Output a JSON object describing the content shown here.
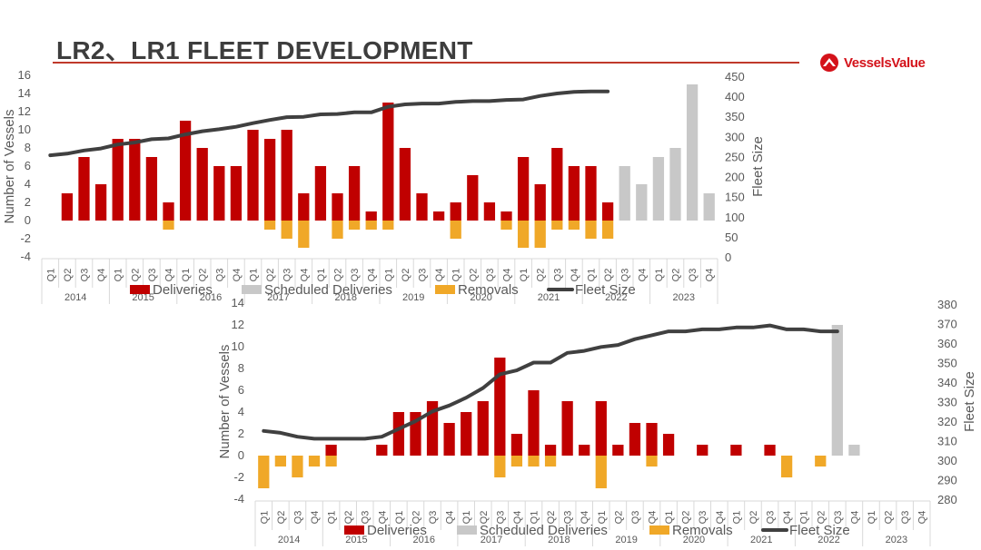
{
  "page": {
    "title": "LR2、LR1 FLEET DEVELOPMENT",
    "brand": "VesselsValue",
    "brand_color": "#d4121a",
    "accent_line_color": "#c0392b"
  },
  "colors": {
    "deliveries": "#c00000",
    "scheduled": "#c8c8c8",
    "removals": "#f0a828",
    "fleet": "#404040",
    "axis_text": "#595959"
  },
  "chart_data": [
    {
      "type": "bar",
      "quarters": [
        "Q1",
        "Q2",
        "Q3",
        "Q4"
      ],
      "years": [
        "2014",
        "2015",
        "2016",
        "2017",
        "2018",
        "2019",
        "2020",
        "2021",
        "2022",
        "2023"
      ],
      "ylabel": "Number of Vessels",
      "y2label": "Fleet Size",
      "ylim": [
        -4,
        16
      ],
      "yticks": [
        -4,
        -2,
        0,
        2,
        4,
        6,
        8,
        10,
        12,
        14,
        16
      ],
      "y2lim": [
        0,
        450
      ],
      "y2ticks": [
        0,
        50,
        100,
        150,
        200,
        250,
        300,
        350,
        400,
        450
      ],
      "legend": [
        "Deliveries",
        "Scheduled Deliveries",
        "Removals",
        "Fleet Size"
      ],
      "legend_position": "bottom",
      "series": {
        "deliveries": [
          0,
          3,
          7,
          4,
          9,
          9,
          7,
          2,
          11,
          8,
          6,
          6,
          10,
          9,
          10,
          3,
          6,
          3,
          6,
          1,
          13,
          8,
          3,
          1,
          2,
          5,
          2,
          1,
          7,
          4,
          8,
          6,
          6,
          2,
          0,
          0,
          0,
          0,
          0,
          0
        ],
        "scheduled": [
          0,
          0,
          0,
          0,
          0,
          0,
          0,
          0,
          0,
          0,
          0,
          0,
          0,
          0,
          0,
          0,
          0,
          0,
          0,
          0,
          0,
          0,
          0,
          0,
          0,
          0,
          0,
          0,
          0,
          0,
          0,
          0,
          0,
          0,
          6,
          4,
          7,
          8,
          15,
          3
        ],
        "removals": [
          0,
          0,
          0,
          0,
          0,
          0,
          0,
          -1,
          0,
          0,
          0,
          0,
          0,
          -1,
          -2,
          -3,
          0,
          -2,
          -1,
          -1,
          -1,
          0,
          0,
          0,
          -2,
          0,
          0,
          -1,
          -3,
          -3,
          -1,
          -1,
          -2,
          -2,
          0,
          0,
          0,
          0,
          0,
          0
        ],
        "fleet_size": [
          253,
          257,
          265,
          270,
          280,
          285,
          293,
          295,
          305,
          313,
          318,
          324,
          333,
          341,
          348,
          349,
          355,
          356,
          360,
          360,
          374,
          380,
          382,
          382,
          386,
          388,
          388,
          391,
          392,
          401,
          407,
          411,
          412,
          412,
          null,
          null,
          null,
          null,
          null,
          null
        ]
      }
    },
    {
      "type": "bar",
      "quarters": [
        "Q1",
        "Q2",
        "Q3",
        "Q4"
      ],
      "years": [
        "2014",
        "2015",
        "2016",
        "2017",
        "2018",
        "2019",
        "2020",
        "2021",
        "2022",
        "2023"
      ],
      "ylabel": "Number of Vessels",
      "y2label": "Fleet Size",
      "ylim": [
        -4,
        14
      ],
      "yticks": [
        -4,
        -2,
        0,
        2,
        4,
        6,
        8,
        10,
        12,
        14
      ],
      "y2lim": [
        280,
        380
      ],
      "y2ticks": [
        280,
        290,
        300,
        310,
        320,
        330,
        340,
        350,
        360,
        370,
        380
      ],
      "legend": [
        "Deliveries",
        "Scheduled Deliveries",
        "Removals",
        "Fleet Size"
      ],
      "legend_position": "bottom",
      "series": {
        "deliveries": [
          0,
          0,
          0,
          0,
          1,
          0,
          0,
          1,
          4,
          4,
          5,
          3,
          4,
          5,
          9,
          2,
          6,
          1,
          5,
          1,
          5,
          1,
          3,
          3,
          2,
          0,
          1,
          0,
          1,
          0,
          1,
          0,
          0,
          0,
          0,
          0,
          0,
          0,
          0,
          0
        ],
        "scheduled": [
          0,
          0,
          0,
          0,
          0,
          0,
          0,
          0,
          0,
          0,
          0,
          0,
          0,
          0,
          0,
          0,
          0,
          0,
          0,
          0,
          0,
          0,
          0,
          0,
          0,
          0,
          0,
          0,
          0,
          0,
          0,
          0,
          0,
          0,
          12,
          1,
          0,
          0,
          0,
          0
        ],
        "removals": [
          -3,
          -1,
          -2,
          -1,
          -1,
          0,
          0,
          0,
          0,
          0,
          0,
          0,
          0,
          0,
          -2,
          -1,
          -1,
          -1,
          0,
          0,
          -3,
          0,
          0,
          -1,
          0,
          0,
          0,
          0,
          0,
          0,
          0,
          -2,
          0,
          -1,
          0,
          0,
          0,
          0,
          0,
          0
        ],
        "fleet_size": [
          315,
          314,
          312,
          311,
          311,
          311,
          311,
          312,
          316,
          320,
          325,
          328,
          332,
          337,
          344,
          346,
          350,
          350,
          355,
          356,
          358,
          359,
          362,
          364,
          366,
          366,
          367,
          367,
          368,
          368,
          369,
          367,
          367,
          366,
          366,
          null,
          null,
          null,
          null,
          null
        ]
      }
    }
  ]
}
